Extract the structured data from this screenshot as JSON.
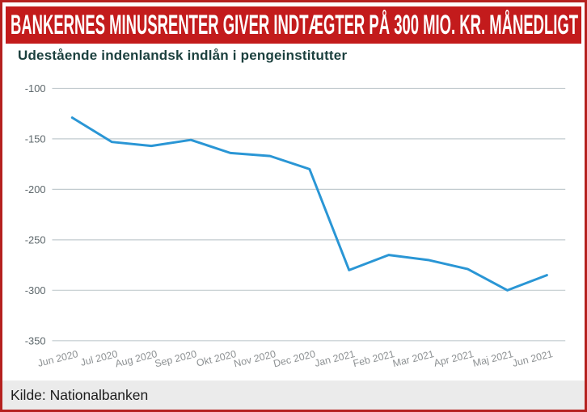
{
  "header": {
    "title": "BANKERNES MINUSRENTER GIVER INDTÆGTER PÅ 300 MIO. KR. MÅNEDLIGT"
  },
  "chart": {
    "title": "Udestående indenlandsk indlån i pengeinstitutter"
  },
  "footer": {
    "source_label": "Kilde: Nationalbanken"
  },
  "colors": {
    "banner_red": "#c31b1c",
    "border_red": "#b5211f",
    "title_teal": "#1b403e",
    "line_blue": "#2a96d5",
    "gridline": "#c2cbcf",
    "ytick": "#5d676b",
    "xtick": "#8d9193",
    "footer_bg": "#ebebeb"
  },
  "chart_data": {
    "type": "line",
    "title": "Udestående indenlandsk indlån i pengeinstitutter",
    "categories": [
      "Jun 2020",
      "Jul 2020",
      "Aug 2020",
      "Sep 2020",
      "Okt 2020",
      "Nov 2020",
      "Dec 2020",
      "Jan 2021",
      "Feb 2021",
      "Mar 2021",
      "Apr 2021",
      "Maj 2021",
      "Jun 2021"
    ],
    "series": [
      {
        "name": "Udestående indenlandsk indlån i pengeinstitutter",
        "values": [
          -129,
          -153,
          -157,
          -151,
          -164,
          -167,
          -180,
          -280,
          -265,
          -270,
          -279,
          -300,
          -285
        ]
      }
    ],
    "ylim": [
      -350,
      -100
    ],
    "yticks": [
      -100,
      -150,
      -200,
      -250,
      -300,
      -350
    ],
    "grid": true,
    "legend_position": "none",
    "xlabel": "",
    "ylabel": ""
  }
}
